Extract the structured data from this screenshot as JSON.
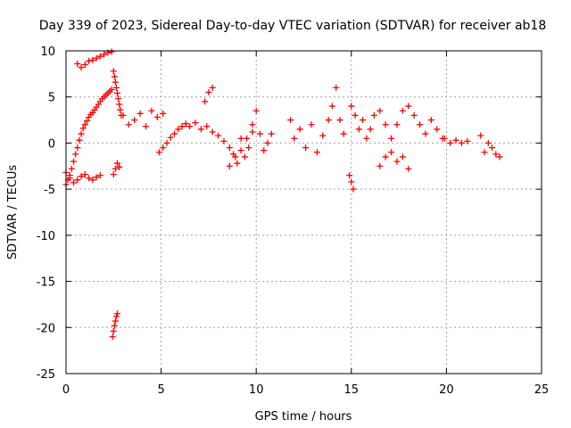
{
  "chart_data": {
    "type": "scatter",
    "title": "Day 339 of 2023, Sidereal Day-to-day VTEC variation (SDTVAR) for receiver ab18",
    "xlabel": "GPS time / hours",
    "ylabel": "SDTVAR / TECUs",
    "xlim": [
      0,
      25
    ],
    "ylim": [
      -25,
      10
    ],
    "xticks": [
      0,
      5,
      10,
      15,
      20,
      25
    ],
    "yticks": [
      10,
      5,
      0,
      -5,
      -10,
      -15,
      -20,
      -25
    ],
    "xtick_labels": [
      "0",
      "5",
      "10",
      "15",
      "20",
      "25"
    ],
    "ytick_labels": [
      "10",
      "5",
      "0",
      "-5",
      "-10",
      "-15",
      "-20",
      "-25"
    ],
    "grid": true,
    "marker": "+",
    "color": "#ff0000",
    "series": [
      {
        "name": "SDTVAR",
        "x": [
          0.0,
          0.1,
          0.2,
          0.3,
          0.4,
          0.5,
          0.6,
          0.7,
          0.8,
          0.9,
          1.0,
          1.1,
          1.2,
          1.3,
          1.4,
          1.5,
          1.6,
          1.7,
          1.8,
          1.9,
          2.0,
          2.1,
          2.2,
          2.3,
          2.4,
          0.0,
          0.2,
          0.4,
          0.6,
          0.8,
          1.0,
          1.2,
          1.4,
          1.6,
          1.8,
          0.6,
          0.8,
          1.0,
          1.2,
          1.4,
          1.6,
          1.8,
          2.0,
          2.2,
          2.4,
          2.5,
          2.55,
          2.6,
          2.65,
          2.7,
          2.75,
          2.8,
          2.85,
          2.9,
          2.5,
          2.6,
          2.7,
          2.8,
          2.45,
          2.5,
          2.55,
          2.6,
          2.65,
          2.7,
          3.0,
          3.3,
          3.6,
          3.9,
          4.2,
          4.5,
          4.8,
          5.1,
          4.9,
          5.1,
          5.3,
          5.5,
          5.7,
          5.9,
          6.1,
          6.3,
          6.5,
          6.8,
          7.1,
          7.4,
          7.7,
          8.0,
          8.3,
          8.6,
          8.9,
          9.2,
          9.5,
          9.8,
          7.3,
          7.5,
          7.7,
          8.6,
          8.8,
          9.0,
          9.2,
          9.4,
          9.6,
          9.8,
          10.0,
          10.2,
          10.4,
          10.6,
          10.8,
          11.8,
          12.0,
          12.3,
          12.6,
          12.9,
          13.2,
          13.5,
          13.8,
          14.0,
          14.2,
          14.4,
          14.6,
          14.9,
          15.0,
          15.1,
          15.0,
          15.2,
          15.4,
          15.6,
          15.8,
          16.0,
          16.2,
          16.5,
          16.8,
          17.1,
          17.4,
          17.7,
          18.0,
          18.3,
          18.6,
          18.9,
          19.2,
          19.5,
          19.8,
          16.5,
          16.8,
          17.1,
          17.4,
          17.7,
          18.0,
          19.9,
          20.2,
          20.5,
          20.8,
          21.1,
          21.8,
          22.0,
          22.2,
          22.4,
          22.6,
          22.8
        ],
        "y": [
          -4.5,
          -4.0,
          -3.5,
          -2.8,
          -2.0,
          -1.2,
          -0.5,
          0.3,
          1.0,
          1.6,
          2.0,
          2.4,
          2.8,
          3.1,
          3.3,
          3.6,
          3.9,
          4.2,
          4.5,
          4.8,
          5.0,
          5.2,
          5.4,
          5.6,
          5.8,
          -3.2,
          -3.8,
          -4.3,
          -4.0,
          -3.6,
          -3.4,
          -3.8,
          -4.0,
          -3.7,
          -3.5,
          8.6,
          8.2,
          8.5,
          8.9,
          9.0,
          9.2,
          9.4,
          9.6,
          9.8,
          9.9,
          7.8,
          7.2,
          6.6,
          6.0,
          5.4,
          4.8,
          4.2,
          3.6,
          3.0,
          -3.4,
          -2.8,
          -2.2,
          -2.6,
          -21.0,
          -20.4,
          -19.8,
          -19.3,
          -18.8,
          -18.5,
          3.0,
          2.0,
          2.5,
          3.2,
          1.8,
          3.5,
          2.8,
          3.2,
          -1.0,
          -0.5,
          0.0,
          0.6,
          1.0,
          1.5,
          1.8,
          2.1,
          1.8,
          2.2,
          1.5,
          1.8,
          1.2,
          0.8,
          0.2,
          -0.5,
          -1.5,
          -0.8,
          0.5,
          1.2,
          4.5,
          5.5,
          6.0,
          -2.5,
          -1.2,
          -2.2,
          0.5,
          -1.5,
          -0.5,
          2.0,
          3.5,
          1.0,
          -0.8,
          0.0,
          1.0,
          2.5,
          0.5,
          1.5,
          -0.5,
          2.0,
          -1.0,
          0.8,
          2.5,
          4.0,
          6.0,
          2.5,
          1.0,
          -3.5,
          -4.2,
          -5.0,
          4.0,
          3.0,
          1.5,
          2.5,
          0.5,
          1.5,
          3.0,
          3.5,
          2.0,
          0.5,
          2.0,
          3.5,
          4.0,
          3.0,
          2.0,
          1.0,
          2.5,
          1.5,
          0.5,
          -2.5,
          -1.5,
          -1.0,
          -2.0,
          -1.5,
          -2.8,
          0.5,
          0.0,
          0.3,
          0.0,
          0.2,
          0.8,
          -1.0,
          0.0,
          -0.5,
          -1.2,
          -1.5
        ]
      }
    ]
  }
}
